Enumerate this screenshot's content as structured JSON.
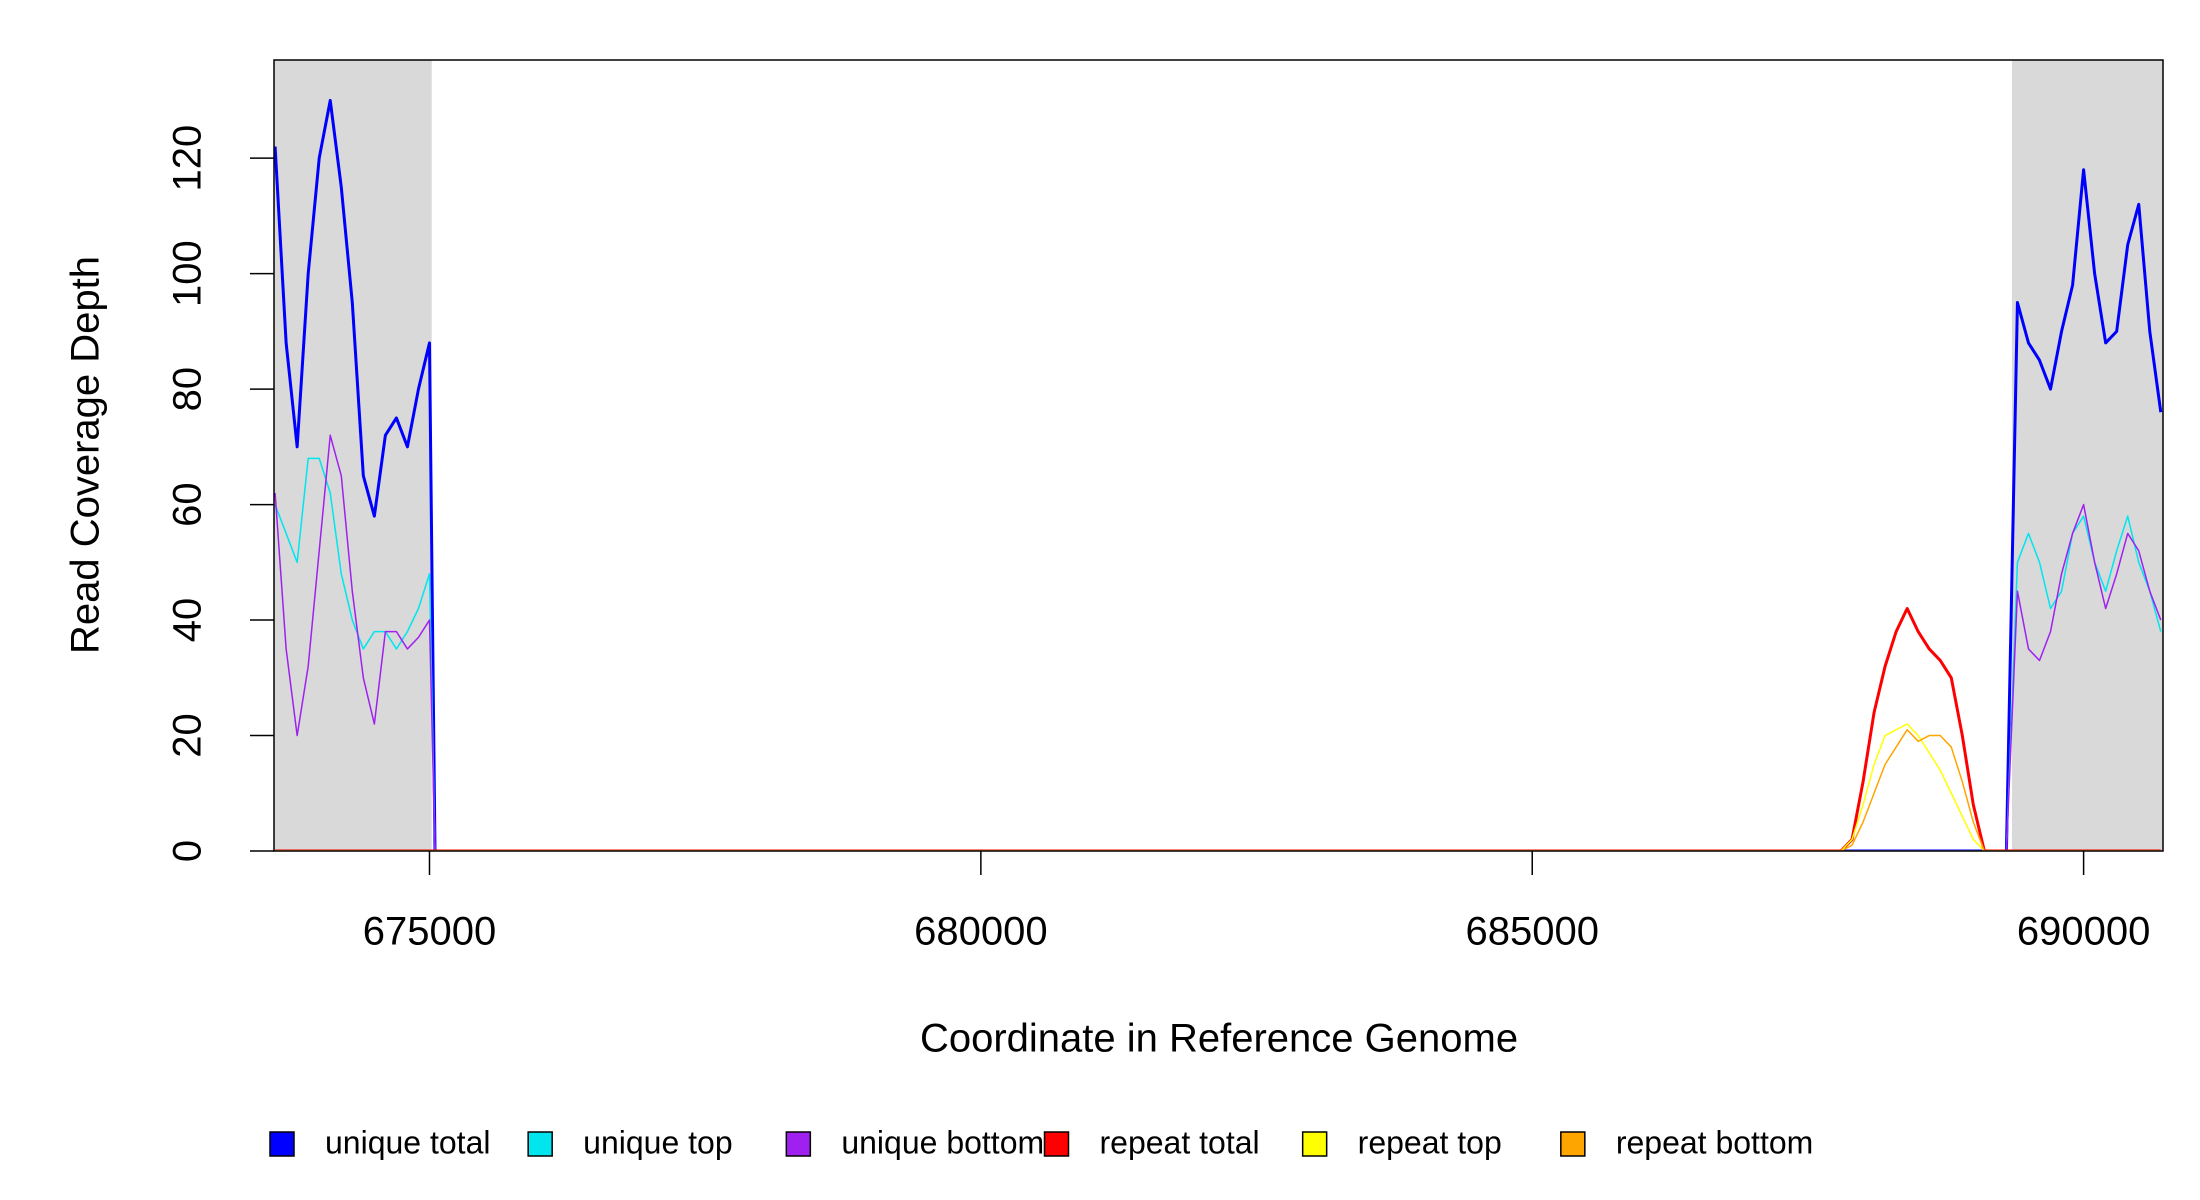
{
  "chart_data": {
    "type": "line",
    "x_label": "Coordinate in Reference Genome",
    "y_label": "Read Coverage Depth",
    "xlim": [
      673590,
      690720
    ],
    "xticks": [
      675000,
      680000,
      685000,
      690000
    ],
    "ylim": [
      0,
      137
    ],
    "yticks": [
      0,
      20,
      40,
      60,
      80,
      100,
      120
    ],
    "shaded_regions": [
      [
        673590,
        675020
      ],
      [
        689350,
        690720
      ]
    ],
    "legend": "bottom",
    "x": [
      673600,
      673700,
      673800,
      673900,
      674000,
      674100,
      674200,
      674300,
      674400,
      674500,
      674600,
      674700,
      674800,
      674900,
      675000,
      675050,
      687800,
      687900,
      688000,
      688100,
      688200,
      688300,
      688400,
      688500,
      688600,
      688700,
      688800,
      688900,
      689000,
      689100,
      689300,
      689400,
      689500,
      689600,
      689700,
      689800,
      689900,
      690000,
      690100,
      690200,
      690300,
      690400,
      690500,
      690600,
      690700
    ],
    "series": [
      {
        "name": "unique total",
        "color": "#0000ff",
        "width": 3,
        "values": [
          122,
          88,
          70,
          100,
          120,
          130,
          115,
          95,
          65,
          58,
          72,
          75,
          70,
          80,
          88,
          0,
          0,
          0,
          0,
          0,
          0,
          0,
          0,
          0,
          0,
          0,
          0,
          0,
          0,
          0,
          0,
          95,
          88,
          85,
          80,
          90,
          98,
          118,
          100,
          88,
          90,
          105,
          112,
          90,
          76
        ]
      },
      {
        "name": "unique top",
        "color": "#00e5ee",
        "width": 1.5,
        "values": [
          60,
          55,
          50,
          68,
          68,
          62,
          48,
          40,
          35,
          38,
          38,
          35,
          38,
          42,
          48,
          0,
          0,
          0,
          0,
          0,
          0,
          0,
          0,
          0,
          0,
          0,
          0,
          0,
          0,
          0,
          0,
          50,
          55,
          50,
          42,
          45,
          55,
          58,
          50,
          45,
          52,
          58,
          50,
          45,
          38
        ]
      },
      {
        "name": "unique bottom",
        "color": "#a020f0",
        "width": 1.5,
        "values": [
          62,
          35,
          20,
          32,
          52,
          72,
          65,
          45,
          30,
          22,
          38,
          38,
          35,
          37,
          40,
          0,
          0,
          0,
          0,
          0,
          0,
          0,
          0,
          0,
          0,
          0,
          0,
          0,
          0,
          0,
          0,
          45,
          35,
          33,
          38,
          48,
          55,
          60,
          50,
          42,
          48,
          55,
          52,
          45,
          40
        ]
      },
      {
        "name": "repeat total",
        "color": "#ff0000",
        "width": 3,
        "values": [
          0,
          0,
          0,
          0,
          0,
          0,
          0,
          0,
          0,
          0,
          0,
          0,
          0,
          0,
          0,
          0,
          0,
          2,
          12,
          24,
          32,
          38,
          42,
          38,
          35,
          33,
          30,
          20,
          8,
          0,
          0,
          0,
          0,
          0,
          0,
          0,
          0,
          0,
          0,
          0,
          0,
          0,
          0,
          0,
          0
        ]
      },
      {
        "name": "repeat top",
        "color": "#ffff00",
        "width": 1.5,
        "values": [
          0,
          0,
          0,
          0,
          0,
          0,
          0,
          0,
          0,
          0,
          0,
          0,
          0,
          0,
          0,
          0,
          0,
          2,
          8,
          15,
          20,
          21,
          22,
          20,
          17,
          14,
          10,
          6,
          2,
          0,
          0,
          0,
          0,
          0,
          0,
          0,
          0,
          0,
          0,
          0,
          0,
          0,
          0,
          0,
          0
        ]
      },
      {
        "name": "repeat bottom",
        "color": "#ffa500",
        "width": 1.5,
        "values": [
          0,
          0,
          0,
          0,
          0,
          0,
          0,
          0,
          0,
          0,
          0,
          0,
          0,
          0,
          0,
          0,
          0,
          1,
          5,
          10,
          15,
          18,
          21,
          19,
          20,
          20,
          18,
          12,
          5,
          0,
          0,
          0,
          0,
          0,
          0,
          0,
          0,
          0,
          0,
          0,
          0,
          0,
          0,
          0,
          0
        ]
      }
    ]
  }
}
